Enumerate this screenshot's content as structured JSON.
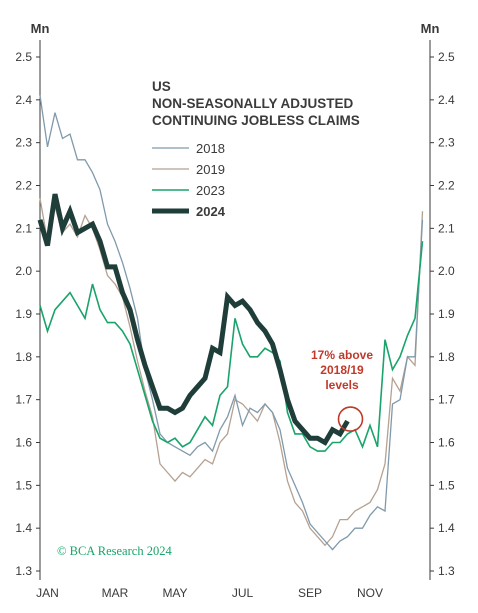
{
  "chart_data": {
    "type": "line",
    "title_lines": [
      "US",
      "NON-SEASONALLY ADJUSTED",
      "CONTINUING JOBLESS CLAIMS"
    ],
    "y_unit_left": "Mn",
    "y_unit_right": "Mn",
    "ylim": [
      1.3,
      2.5
    ],
    "y_ticks": [
      1.3,
      1.4,
      1.5,
      1.6,
      1.7,
      1.8,
      1.9,
      2.0,
      2.1,
      2.2,
      2.3,
      2.4,
      2.5
    ],
    "y_tick_labels": [
      "1.3",
      "1.4",
      "1.5",
      "1.6",
      "1.7",
      "1.8",
      "1.9",
      "2.0",
      "2.1",
      "2.2",
      "2.3",
      "2.4",
      "2.5"
    ],
    "x_unit": "week of year",
    "xlim": [
      1,
      53
    ],
    "x_ticks": [
      {
        "label": "JAN",
        "week": 2
      },
      {
        "label": "MAR",
        "week": 11
      },
      {
        "label": "MAY",
        "week": 19
      },
      {
        "label": "JUL",
        "week": 28
      },
      {
        "label": "SEP",
        "week": 37
      },
      {
        "label": "NOV",
        "week": 45
      }
    ],
    "legend_position": "top-center",
    "grid": false,
    "series": [
      {
        "name": "2018",
        "color": "#7f9aac",
        "weight": "thin",
        "x": [
          1,
          2,
          3,
          4,
          5,
          6,
          7,
          8,
          9,
          10,
          11,
          12,
          13,
          14,
          15,
          16,
          17,
          18,
          19,
          20,
          21,
          22,
          23,
          24,
          25,
          26,
          27,
          28,
          29,
          30,
          31,
          32,
          33,
          34,
          35,
          36,
          37,
          38,
          39,
          40,
          41,
          42,
          43,
          44,
          45,
          46,
          47,
          48,
          49,
          50,
          51,
          52
        ],
        "values": [
          2.41,
          2.29,
          2.37,
          2.31,
          2.32,
          2.26,
          2.26,
          2.23,
          2.19,
          2.11,
          2.07,
          2.02,
          1.96,
          1.89,
          1.77,
          1.7,
          1.62,
          1.6,
          1.59,
          1.58,
          1.57,
          1.59,
          1.6,
          1.58,
          1.63,
          1.66,
          1.71,
          1.64,
          1.68,
          1.67,
          1.69,
          1.67,
          1.63,
          1.54,
          1.5,
          1.46,
          1.41,
          1.39,
          1.37,
          1.35,
          1.37,
          1.38,
          1.4,
          1.4,
          1.43,
          1.45,
          1.44,
          1.69,
          1.7,
          1.8,
          1.8,
          2.12
        ]
      },
      {
        "name": "2019",
        "color": "#b5a190",
        "weight": "thin",
        "x": [
          1,
          2,
          3,
          4,
          5,
          6,
          7,
          8,
          9,
          10,
          11,
          12,
          13,
          14,
          15,
          16,
          17,
          18,
          19,
          20,
          21,
          22,
          23,
          24,
          25,
          26,
          27,
          28,
          29,
          30,
          31,
          32,
          33,
          34,
          35,
          36,
          37,
          38,
          39,
          40,
          41,
          42,
          43,
          44,
          45,
          46,
          47,
          48,
          49,
          50,
          51,
          52
        ],
        "values": [
          2.17,
          2.07,
          2.15,
          2.09,
          2.11,
          2.08,
          2.13,
          2.1,
          2.05,
          1.99,
          1.97,
          1.94,
          1.87,
          1.79,
          1.72,
          1.66,
          1.55,
          1.53,
          1.51,
          1.53,
          1.52,
          1.54,
          1.56,
          1.55,
          1.6,
          1.62,
          1.7,
          1.69,
          1.67,
          1.65,
          1.69,
          1.67,
          1.6,
          1.51,
          1.46,
          1.44,
          1.4,
          1.38,
          1.36,
          1.38,
          1.42,
          1.42,
          1.44,
          1.45,
          1.46,
          1.49,
          1.55,
          1.75,
          1.72,
          1.8,
          1.78,
          2.14
        ]
      },
      {
        "name": "2023",
        "color": "#1aa36b",
        "weight": "medium",
        "x": [
          1,
          2,
          3,
          4,
          5,
          6,
          7,
          8,
          9,
          10,
          11,
          12,
          13,
          14,
          15,
          16,
          17,
          18,
          19,
          20,
          21,
          22,
          23,
          24,
          25,
          26,
          27,
          28,
          29,
          30,
          31,
          32,
          33,
          34,
          35,
          36,
          37,
          38,
          39,
          40,
          41,
          42,
          43,
          44,
          45,
          46,
          47,
          48,
          49,
          50,
          51,
          52
        ],
        "values": [
          1.92,
          1.86,
          1.91,
          1.93,
          1.95,
          1.92,
          1.89,
          1.97,
          1.91,
          1.88,
          1.88,
          1.86,
          1.83,
          1.77,
          1.71,
          1.65,
          1.61,
          1.6,
          1.61,
          1.59,
          1.6,
          1.63,
          1.66,
          1.64,
          1.71,
          1.73,
          1.89,
          1.83,
          1.8,
          1.8,
          1.82,
          1.81,
          1.79,
          1.67,
          1.62,
          1.62,
          1.59,
          1.58,
          1.58,
          1.6,
          1.6,
          1.62,
          1.63,
          1.59,
          1.64,
          1.59,
          1.84,
          1.77,
          1.8,
          1.85,
          1.89,
          2.07
        ]
      },
      {
        "name": "2024",
        "color": "#1f3e3a",
        "weight": "bold",
        "x": [
          1,
          2,
          3,
          4,
          5,
          6,
          7,
          8,
          9,
          10,
          11,
          12,
          13,
          14,
          15,
          16,
          17,
          18,
          19,
          20,
          21,
          22,
          23,
          24,
          25,
          26,
          27,
          28,
          29,
          30,
          31,
          32,
          33,
          34,
          35,
          36,
          37,
          38,
          39,
          40,
          41,
          42
        ],
        "values": [
          2.12,
          2.06,
          2.18,
          2.1,
          2.14,
          2.09,
          2.1,
          2.11,
          2.07,
          2.01,
          2.01,
          1.95,
          1.91,
          1.84,
          1.78,
          1.73,
          1.68,
          1.68,
          1.67,
          1.68,
          1.71,
          1.73,
          1.75,
          1.82,
          1.81,
          1.94,
          1.92,
          1.93,
          1.91,
          1.88,
          1.86,
          1.83,
          1.77,
          1.7,
          1.65,
          1.63,
          1.61,
          1.61,
          1.6,
          1.63,
          1.62,
          1.65
        ]
      }
    ],
    "annotation": {
      "lines": [
        "17% above",
        "2018/19",
        "levels"
      ],
      "target_week": 42,
      "target_value": 1.65,
      "color": "#c0392b"
    },
    "credit": "© BCA Research 2024"
  }
}
